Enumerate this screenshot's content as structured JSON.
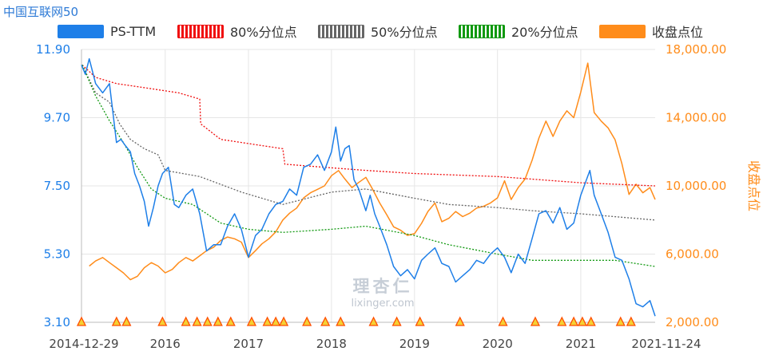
{
  "title": "中国互联网50",
  "legend": [
    {
      "label": "PS-TTM",
      "color": "#1e7fe8",
      "style": "solid"
    },
    {
      "label": "80%分位点",
      "color": "#f00d0d",
      "style": "dashed"
    },
    {
      "label": "50%分位点",
      "color": "#666666",
      "style": "dashed"
    },
    {
      "label": "20%分位点",
      "color": "#119911",
      "style": "dashed"
    },
    {
      "label": "收盘点位",
      "color": "#ff8c1a",
      "style": "solid"
    }
  ],
  "watermark": {
    "top": "理杏仁",
    "bottom": "lixinger.com"
  },
  "chart_data": {
    "type": "line",
    "x_range": [
      "2014-12-29",
      "2021-11-24"
    ],
    "x_tick_labels": [
      "2014-12-29",
      "2016",
      "2017",
      "2018",
      "2019",
      "2020",
      "2021",
      "2021-11-24"
    ],
    "y_left": {
      "label": "",
      "ticks": [
        "3.10",
        "5.30",
        "7.50",
        "9.70",
        "11.90"
      ],
      "range": [
        3.1,
        11.9
      ]
    },
    "y_right": {
      "label": "收盘点位",
      "ticks": [
        "2,000.00",
        "6,000.00",
        "10,000.00",
        "14,000.00",
        "18,000.00"
      ],
      "range": [
        2000,
        18000
      ]
    },
    "series": [
      {
        "name": "PS-TTM",
        "axis": "left",
        "color": "#1e7fe8",
        "style": "solid",
        "points": [
          [
            "2014-12-29",
            11.4
          ],
          [
            "2015-01-15",
            11.1
          ],
          [
            "2015-02-01",
            11.6
          ],
          [
            "2015-03-01",
            10.8
          ],
          [
            "2015-04-01",
            10.5
          ],
          [
            "2015-05-01",
            10.8
          ],
          [
            "2015-06-01",
            8.9
          ],
          [
            "2015-06-20",
            9.0
          ],
          [
            "2015-07-10",
            8.8
          ],
          [
            "2015-08-01",
            8.6
          ],
          [
            "2015-08-20",
            7.9
          ],
          [
            "2015-09-10",
            7.5
          ],
          [
            "2015-10-01",
            7.0
          ],
          [
            "2015-10-20",
            6.2
          ],
          [
            "2015-11-10",
            6.8
          ],
          [
            "2015-12-01",
            7.5
          ],
          [
            "2015-12-20",
            7.9
          ],
          [
            "2016-01-15",
            8.1
          ],
          [
            "2016-02-10",
            6.9
          ],
          [
            "2016-03-01",
            6.8
          ],
          [
            "2016-04-01",
            7.2
          ],
          [
            "2016-05-01",
            7.4
          ],
          [
            "2016-06-01",
            6.6
          ],
          [
            "2016-07-01",
            5.4
          ],
          [
            "2016-08-01",
            5.6
          ],
          [
            "2016-09-01",
            5.6
          ],
          [
            "2016-10-01",
            6.2
          ],
          [
            "2016-11-01",
            6.6
          ],
          [
            "2016-12-01",
            6.1
          ],
          [
            "2017-01-01",
            5.2
          ],
          [
            "2017-02-01",
            5.9
          ],
          [
            "2017-03-01",
            6.1
          ],
          [
            "2017-04-01",
            6.6
          ],
          [
            "2017-05-01",
            6.9
          ],
          [
            "2017-06-01",
            7.0
          ],
          [
            "2017-07-01",
            7.4
          ],
          [
            "2017-08-01",
            7.2
          ],
          [
            "2017-09-01",
            8.1
          ],
          [
            "2017-10-01",
            8.2
          ],
          [
            "2017-11-01",
            8.5
          ],
          [
            "2017-12-01",
            8.0
          ],
          [
            "2018-01-01",
            8.6
          ],
          [
            "2018-01-20",
            9.4
          ],
          [
            "2018-02-10",
            8.3
          ],
          [
            "2018-03-01",
            8.7
          ],
          [
            "2018-03-20",
            8.8
          ],
          [
            "2018-04-10",
            7.7
          ],
          [
            "2018-05-01",
            7.4
          ],
          [
            "2018-06-01",
            6.7
          ],
          [
            "2018-06-20",
            7.2
          ],
          [
            "2018-07-10",
            6.6
          ],
          [
            "2018-08-01",
            6.2
          ],
          [
            "2018-09-01",
            5.6
          ],
          [
            "2018-10-01",
            4.9
          ],
          [
            "2018-11-01",
            4.6
          ],
          [
            "2018-12-01",
            4.8
          ],
          [
            "2019-01-01",
            4.5
          ],
          [
            "2019-02-01",
            5.1
          ],
          [
            "2019-03-01",
            5.3
          ],
          [
            "2019-04-01",
            5.5
          ],
          [
            "2019-05-01",
            5.0
          ],
          [
            "2019-06-01",
            4.9
          ],
          [
            "2019-07-01",
            4.4
          ],
          [
            "2019-08-01",
            4.6
          ],
          [
            "2019-09-01",
            4.8
          ],
          [
            "2019-10-01",
            5.1
          ],
          [
            "2019-11-01",
            5.0
          ],
          [
            "2019-12-01",
            5.3
          ],
          [
            "2020-01-01",
            5.5
          ],
          [
            "2020-02-01",
            5.2
          ],
          [
            "2020-03-01",
            4.7
          ],
          [
            "2020-04-01",
            5.3
          ],
          [
            "2020-05-01",
            5.0
          ],
          [
            "2020-06-01",
            5.8
          ],
          [
            "2020-07-01",
            6.6
          ],
          [
            "2020-08-01",
            6.7
          ],
          [
            "2020-09-01",
            6.3
          ],
          [
            "2020-10-01",
            6.8
          ],
          [
            "2020-11-01",
            6.1
          ],
          [
            "2020-12-01",
            6.3
          ],
          [
            "2021-01-01",
            7.2
          ],
          [
            "2021-02-10",
            8.0
          ],
          [
            "2021-03-01",
            7.2
          ],
          [
            "2021-04-01",
            6.6
          ],
          [
            "2021-05-01",
            6.0
          ],
          [
            "2021-06-01",
            5.2
          ],
          [
            "2021-07-01",
            5.1
          ],
          [
            "2021-08-01",
            4.5
          ],
          [
            "2021-09-01",
            3.7
          ],
          [
            "2021-10-01",
            3.6
          ],
          [
            "2021-11-01",
            3.8
          ],
          [
            "2021-11-24",
            3.3
          ]
        ]
      },
      {
        "name": "80%分位点",
        "axis": "left",
        "color": "#f00d0d",
        "style": "dashed",
        "points": [
          [
            "2015-01-01",
            11.4
          ],
          [
            "2015-03-01",
            11.0
          ],
          [
            "2015-06-01",
            10.8
          ],
          [
            "2015-09-01",
            10.7
          ],
          [
            "2015-12-01",
            10.6
          ],
          [
            "2016-03-01",
            10.5
          ],
          [
            "2016-06-01",
            10.3
          ],
          [
            "2016-06-05",
            9.5
          ],
          [
            "2016-09-01",
            9.0
          ],
          [
            "2016-12-01",
            8.9
          ],
          [
            "2017-03-01",
            8.8
          ],
          [
            "2017-06-01",
            8.7
          ],
          [
            "2017-06-10",
            8.2
          ],
          [
            "2017-12-01",
            8.1
          ],
          [
            "2018-06-01",
            8.0
          ],
          [
            "2019-01-01",
            7.9
          ],
          [
            "2020-01-01",
            7.8
          ],
          [
            "2021-01-01",
            7.6
          ],
          [
            "2021-11-24",
            7.5
          ]
        ]
      },
      {
        "name": "50%分位点",
        "axis": "left",
        "color": "#666666",
        "style": "dashed",
        "points": [
          [
            "2015-01-01",
            11.4
          ],
          [
            "2015-03-01",
            10.5
          ],
          [
            "2015-05-01",
            10.2
          ],
          [
            "2015-06-15",
            9.5
          ],
          [
            "2015-08-01",
            9.0
          ],
          [
            "2015-10-01",
            8.7
          ],
          [
            "2015-12-01",
            8.5
          ],
          [
            "2016-01-01",
            8.0
          ],
          [
            "2016-06-01",
            7.8
          ],
          [
            "2016-12-01",
            7.3
          ],
          [
            "2017-06-01",
            6.9
          ],
          [
            "2018-01-01",
            7.3
          ],
          [
            "2018-06-01",
            7.4
          ],
          [
            "2019-01-01",
            7.1
          ],
          [
            "2019-06-01",
            6.9
          ],
          [
            "2020-01-01",
            6.8
          ],
          [
            "2020-06-01",
            6.7
          ],
          [
            "2021-01-01",
            6.6
          ],
          [
            "2021-11-24",
            6.4
          ]
        ]
      },
      {
        "name": "20%分位点",
        "axis": "left",
        "color": "#119911",
        "style": "dashed",
        "points": [
          [
            "2015-01-01",
            11.4
          ],
          [
            "2015-03-01",
            10.4
          ],
          [
            "2015-05-01",
            9.6
          ],
          [
            "2015-07-01",
            8.9
          ],
          [
            "2015-09-01",
            8.1
          ],
          [
            "2015-11-01",
            7.4
          ],
          [
            "2016-01-01",
            7.1
          ],
          [
            "2016-05-01",
            6.9
          ],
          [
            "2016-09-01",
            6.3
          ],
          [
            "2017-01-01",
            6.1
          ],
          [
            "2017-06-01",
            6.0
          ],
          [
            "2018-01-01",
            6.1
          ],
          [
            "2018-06-01",
            6.2
          ],
          [
            "2019-01-01",
            5.9
          ],
          [
            "2019-06-01",
            5.6
          ],
          [
            "2020-01-01",
            5.3
          ],
          [
            "2020-06-01",
            5.1
          ],
          [
            "2021-01-01",
            5.1
          ],
          [
            "2021-06-01",
            5.1
          ],
          [
            "2021-11-24",
            4.9
          ]
        ]
      },
      {
        "name": "收盘点位",
        "axis": "right",
        "color": "#ff8c1a",
        "style": "solid",
        "points": [
          [
            "2015-02-01",
            5300
          ],
          [
            "2015-03-01",
            5600
          ],
          [
            "2015-04-01",
            5800
          ],
          [
            "2015-05-01",
            5500
          ],
          [
            "2015-06-01",
            5200
          ],
          [
            "2015-07-01",
            4900
          ],
          [
            "2015-08-01",
            4500
          ],
          [
            "2015-09-01",
            4700
          ],
          [
            "2015-10-01",
            5200
          ],
          [
            "2015-11-01",
            5500
          ],
          [
            "2015-12-01",
            5300
          ],
          [
            "2016-01-01",
            4900
          ],
          [
            "2016-02-01",
            5100
          ],
          [
            "2016-03-01",
            5500
          ],
          [
            "2016-04-01",
            5800
          ],
          [
            "2016-05-01",
            5600
          ],
          [
            "2016-06-01",
            5900
          ],
          [
            "2016-07-01",
            6200
          ],
          [
            "2016-08-01",
            6400
          ],
          [
            "2016-09-01",
            6800
          ],
          [
            "2016-10-01",
            7000
          ],
          [
            "2016-11-01",
            6900
          ],
          [
            "2016-12-01",
            6700
          ],
          [
            "2017-01-01",
            5800
          ],
          [
            "2017-02-01",
            6200
          ],
          [
            "2017-03-01",
            6600
          ],
          [
            "2017-04-01",
            6900
          ],
          [
            "2017-05-01",
            7300
          ],
          [
            "2017-06-01",
            8000
          ],
          [
            "2017-07-01",
            8400
          ],
          [
            "2017-08-01",
            8700
          ],
          [
            "2017-09-01",
            9300
          ],
          [
            "2017-10-01",
            9600
          ],
          [
            "2017-11-01",
            9800
          ],
          [
            "2017-12-01",
            10000
          ],
          [
            "2018-01-01",
            10600
          ],
          [
            "2018-02-01",
            10900
          ],
          [
            "2018-03-01",
            10400
          ],
          [
            "2018-04-01",
            9900
          ],
          [
            "2018-05-01",
            10200
          ],
          [
            "2018-06-01",
            10500
          ],
          [
            "2018-07-01",
            9800
          ],
          [
            "2018-08-01",
            9000
          ],
          [
            "2018-09-01",
            8300
          ],
          [
            "2018-10-01",
            7600
          ],
          [
            "2018-11-01",
            7400
          ],
          [
            "2018-12-01",
            7100
          ],
          [
            "2019-01-01",
            7200
          ],
          [
            "2019-02-01",
            7800
          ],
          [
            "2019-03-01",
            8500
          ],
          [
            "2019-04-01",
            9000
          ],
          [
            "2019-05-01",
            7900
          ],
          [
            "2019-06-01",
            8100
          ],
          [
            "2019-07-01",
            8500
          ],
          [
            "2019-08-01",
            8200
          ],
          [
            "2019-09-01",
            8400
          ],
          [
            "2019-10-01",
            8700
          ],
          [
            "2019-11-01",
            8800
          ],
          [
            "2019-12-01",
            9000
          ],
          [
            "2020-01-01",
            9300
          ],
          [
            "2020-02-01",
            10300
          ],
          [
            "2020-03-01",
            9200
          ],
          [
            "2020-04-01",
            9900
          ],
          [
            "2020-05-01",
            10400
          ],
          [
            "2020-06-01",
            11500
          ],
          [
            "2020-07-01",
            12800
          ],
          [
            "2020-08-01",
            13800
          ],
          [
            "2020-09-01",
            12900
          ],
          [
            "2020-10-01",
            13800
          ],
          [
            "2020-11-01",
            14400
          ],
          [
            "2020-12-01",
            14000
          ],
          [
            "2021-01-01",
            15500
          ],
          [
            "2021-02-01",
            17200
          ],
          [
            "2021-03-01",
            14300
          ],
          [
            "2021-04-01",
            13800
          ],
          [
            "2021-05-01",
            13400
          ],
          [
            "2021-06-01",
            12700
          ],
          [
            "2021-07-01",
            11300
          ],
          [
            "2021-08-01",
            9500
          ],
          [
            "2021-09-01",
            10100
          ],
          [
            "2021-10-01",
            9600
          ],
          [
            "2021-11-01",
            9900
          ],
          [
            "2021-11-24",
            9200
          ]
        ]
      }
    ],
    "markers": {
      "color": "#ff4d00",
      "fill": "#f5d033",
      "dates": [
        "2014-12-29",
        "2015-06-01",
        "2015-07-15",
        "2015-12-20",
        "2016-04-01",
        "2016-05-20",
        "2016-07-05",
        "2016-08-20",
        "2016-10-15",
        "2017-01-15",
        "2017-03-25",
        "2017-05-01",
        "2017-06-05",
        "2017-09-15",
        "2017-12-05",
        "2018-02-10",
        "2018-07-05",
        "2018-10-15",
        "2019-01-25",
        "2019-07-20",
        "2020-01-25",
        "2020-06-15",
        "2020-10-10",
        "2020-12-01",
        "2021-01-08",
        "2021-02-15",
        "2021-06-25",
        "2021-08-10"
      ]
    }
  }
}
